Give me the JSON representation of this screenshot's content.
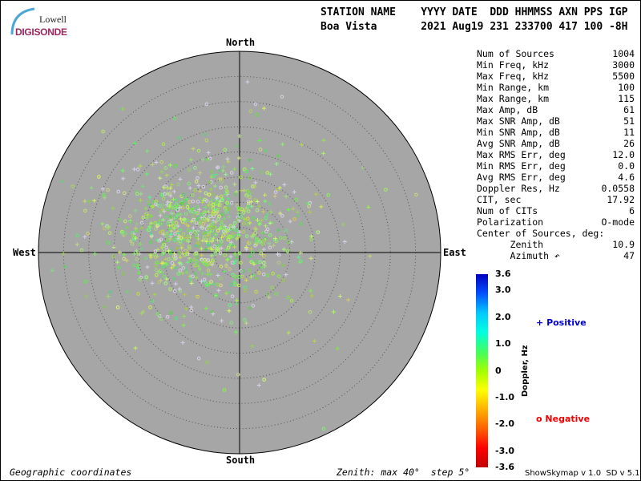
{
  "logo": {
    "line1": "Lowell",
    "line2": "DIGISONDE"
  },
  "header": {
    "line1": "STATION NAME    YYYY DATE  DDD HHMMSS AXN PPS IGP",
    "line2": "Boa Vista       2021 Aug19 231 233700 417 100 -8H"
  },
  "directions": {
    "north": "North",
    "south": "South",
    "east": "East",
    "west": "West"
  },
  "stats": [
    {
      "label": "Num of Sources",
      "value": "1004"
    },
    {
      "label": "Min Freq, kHz",
      "value": "3000"
    },
    {
      "label": "Max Freq, kHz",
      "value": "5500"
    },
    {
      "label": "Min Range, km",
      "value": "100"
    },
    {
      "label": "Max Range, km",
      "value": "115"
    },
    {
      "label": "Max Amp, dB",
      "value": "61"
    },
    {
      "label": "Max SNR Amp, dB",
      "value": "51"
    },
    {
      "label": "Min SNR Amp, dB",
      "value": "11"
    },
    {
      "label": "Avg SNR Amp, dB",
      "value": "26"
    },
    {
      "label": "Max RMS Err, deg",
      "value": "12.0"
    },
    {
      "label": "Min RMS Err, deg",
      "value": "0.0"
    },
    {
      "label": "Avg RMS Err, deg",
      "value": "4.6"
    },
    {
      "label": "Doppler Res, Hz",
      "value": "0.0558"
    },
    {
      "label": "CIT, sec",
      "value": "17.92"
    },
    {
      "label": "Num of CITs",
      "value": "6"
    },
    {
      "label": "Polarization",
      "value": "O-mode"
    },
    {
      "label": "Center of Sources, deg:",
      "value": ""
    },
    {
      "label": "      Zenith",
      "value": "10.9"
    },
    {
      "label": "      Azimuth ↶",
      "value": "47"
    }
  ],
  "colorbar": {
    "label": "Doppler, Hz",
    "ticks": [
      "3.6",
      "3.0",
      "2.0",
      "1.0",
      "0",
      "-1.0",
      "-2.0",
      "-3.0",
      "-3.6"
    ],
    "range": [
      -3.6,
      3.6
    ]
  },
  "legend": {
    "positive": "Positive",
    "negative": "Negative",
    "positive_color": "#0000dd",
    "negative_color": "#ee0000"
  },
  "footer": {
    "left": "Geographic coordinates",
    "center": "Zenith: max 40°  step 5°",
    "right": "ShowSkymap v 1.0  SD v 5.1"
  },
  "chart_data": {
    "type": "scatter",
    "projection": "polar skymap",
    "zenith_max_deg": 40,
    "zenith_step_deg": 5,
    "num_sources": 1004,
    "center_of_sources": {
      "zenith_deg": 10.9,
      "azimuth_deg": 47
    },
    "background": "#a6a6a6",
    "grid": true
  }
}
